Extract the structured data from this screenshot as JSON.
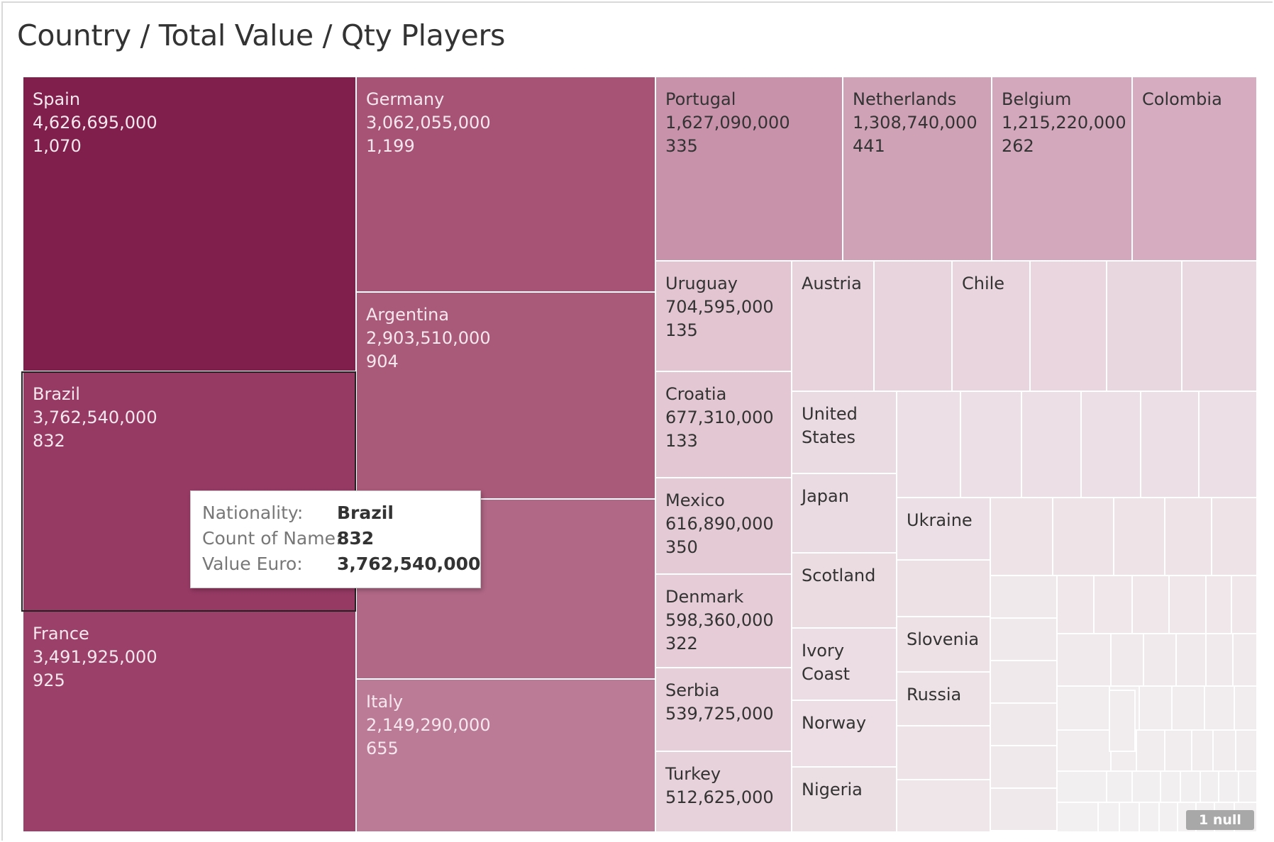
{
  "chart_data": {
    "type": "treemap",
    "title": "Country / Total Value / Qty Players",
    "measures": [
      "Value Euro",
      "Count of Name"
    ],
    "color_scale": {
      "dark": "#7f1d4a",
      "light": "#f0eff0"
    },
    "items": [
      {
        "name": "Spain",
        "value": 4626695000,
        "count": 1070,
        "color": "#801f4b",
        "labels": [
          "Spain",
          "4,626,695,000",
          "1,070"
        ]
      },
      {
        "name": "Brazil",
        "value": 3762540000,
        "count": 832,
        "color": "#963a64",
        "labels": [
          "Brazil",
          "3,762,540,000",
          "832"
        ]
      },
      {
        "name": "France",
        "value": 3491925000,
        "count": 925,
        "color": "#9b4169",
        "labels": [
          "France",
          "3,491,925,000",
          "925"
        ]
      },
      {
        "name": "Germany",
        "value": 3062055000,
        "count": 1199,
        "color": "#a65375",
        "labels": [
          "Germany",
          "3,062,055,000",
          "1,199"
        ]
      },
      {
        "name": "Argentina",
        "value": 2903510000,
        "count": 904,
        "color": "#a95a78",
        "labels": [
          "Argentina",
          "2,903,510,000",
          "904"
        ]
      },
      {
        "name": "",
        "value": null,
        "color": "#b06886",
        "labels": []
      },
      {
        "name": "Italy",
        "value": 2149290000,
        "count": 655,
        "color": "#bb7b96",
        "labels": [
          "Italy",
          "2,149,290,000",
          "655"
        ]
      },
      {
        "name": "Portugal",
        "value": 1627090000,
        "count": 335,
        "color": "#c992ab",
        "labels": [
          "Portugal",
          "1,627,090,000",
          "335"
        ]
      },
      {
        "name": "Netherlands",
        "value": 1308740000,
        "count": 441,
        "color": "#d0a2b6",
        "labels": [
          "Netherlands",
          "1,308,740,000",
          "441"
        ]
      },
      {
        "name": "Belgium",
        "value": 1215220000,
        "count": 262,
        "color": "#d4a8bc",
        "labels": [
          "Belgium",
          "1,215,220,000",
          "262"
        ]
      },
      {
        "name": "Colombia",
        "value": null,
        "color": "#d6adc0",
        "labels": [
          "Colombia"
        ]
      },
      {
        "name": "Uruguay",
        "value": 704595000,
        "count": 135,
        "color": "#e2c5d1",
        "labels": [
          "Uruguay",
          "704,595,000",
          "135"
        ]
      },
      {
        "name": "Croatia",
        "value": 677310000,
        "count": 133,
        "color": "#e3c8d3",
        "labels": [
          "Croatia",
          "677,310,000",
          "133"
        ]
      },
      {
        "name": "Mexico",
        "value": 616890000,
        "count": 350,
        "color": "#e4cad5",
        "labels": [
          "Mexico",
          "616,890,000",
          "350"
        ]
      },
      {
        "name": "Denmark",
        "value": 598360000,
        "count": 322,
        "color": "#e5ccd7",
        "labels": [
          "Denmark",
          "598,360,000",
          "322"
        ]
      },
      {
        "name": "Serbia",
        "value": 539725000,
        "color": "#e6cfd9",
        "labels": [
          "Serbia",
          "539,725,000"
        ]
      },
      {
        "name": "Turkey",
        "value": 512625000,
        "color": "#e7d1da",
        "labels": [
          "Turkey",
          "512,625,000"
        ]
      },
      {
        "name": "Austria",
        "value": null,
        "color": "#e8d3dc",
        "labels": [
          "Austria"
        ]
      },
      {
        "name": "",
        "value": null,
        "color": "#e8d4dd",
        "labels": []
      },
      {
        "name": "Chile",
        "value": null,
        "color": "#e8d5dd",
        "labels": [
          "Chile"
        ]
      },
      {
        "name": "",
        "value": null,
        "color": "#e9d6de",
        "labels": []
      },
      {
        "name": "",
        "value": null,
        "color": "#e9d7df",
        "labels": []
      },
      {
        "name": "",
        "value": null,
        "color": "#e9d8df",
        "labels": []
      },
      {
        "name": "United States",
        "value": null,
        "color": "#eadae1",
        "labels": [
          "United",
          "States"
        ]
      },
      {
        "name": "Japan",
        "value": null,
        "color": "#eadae1",
        "labels": [
          "Japan"
        ]
      },
      {
        "name": "Scotland",
        "value": null,
        "color": "#ebdce2",
        "labels": [
          "Scotland"
        ]
      },
      {
        "name": "Ivory Coast",
        "value": null,
        "color": "#ebdde3",
        "labels": [
          "Ivory",
          "Coast"
        ]
      },
      {
        "name": "Norway",
        "value": null,
        "color": "#ecdee4",
        "labels": [
          "Norway"
        ]
      },
      {
        "name": "Nigeria",
        "value": null,
        "color": "#ecdfe4",
        "labels": [
          "Nigeria"
        ]
      },
      {
        "name": "Ukraine",
        "value": null,
        "color": "#ecdfe5",
        "labels": [
          "Ukraine"
        ]
      },
      {
        "name": "Slovenia",
        "value": null,
        "color": "#ede1e6",
        "labels": [
          "Slovenia"
        ]
      },
      {
        "name": "Russia",
        "value": null,
        "color": "#ede2e6",
        "labels": [
          "Russia"
        ]
      }
    ]
  },
  "tooltip": {
    "rows": [
      {
        "key": "Nationality:",
        "value": "Brazil"
      },
      {
        "key": "Count of Name:",
        "value": "832"
      },
      {
        "key": "Value Euro:",
        "value": "3,762,540,000"
      }
    ]
  },
  "null_indicator": "1 null"
}
